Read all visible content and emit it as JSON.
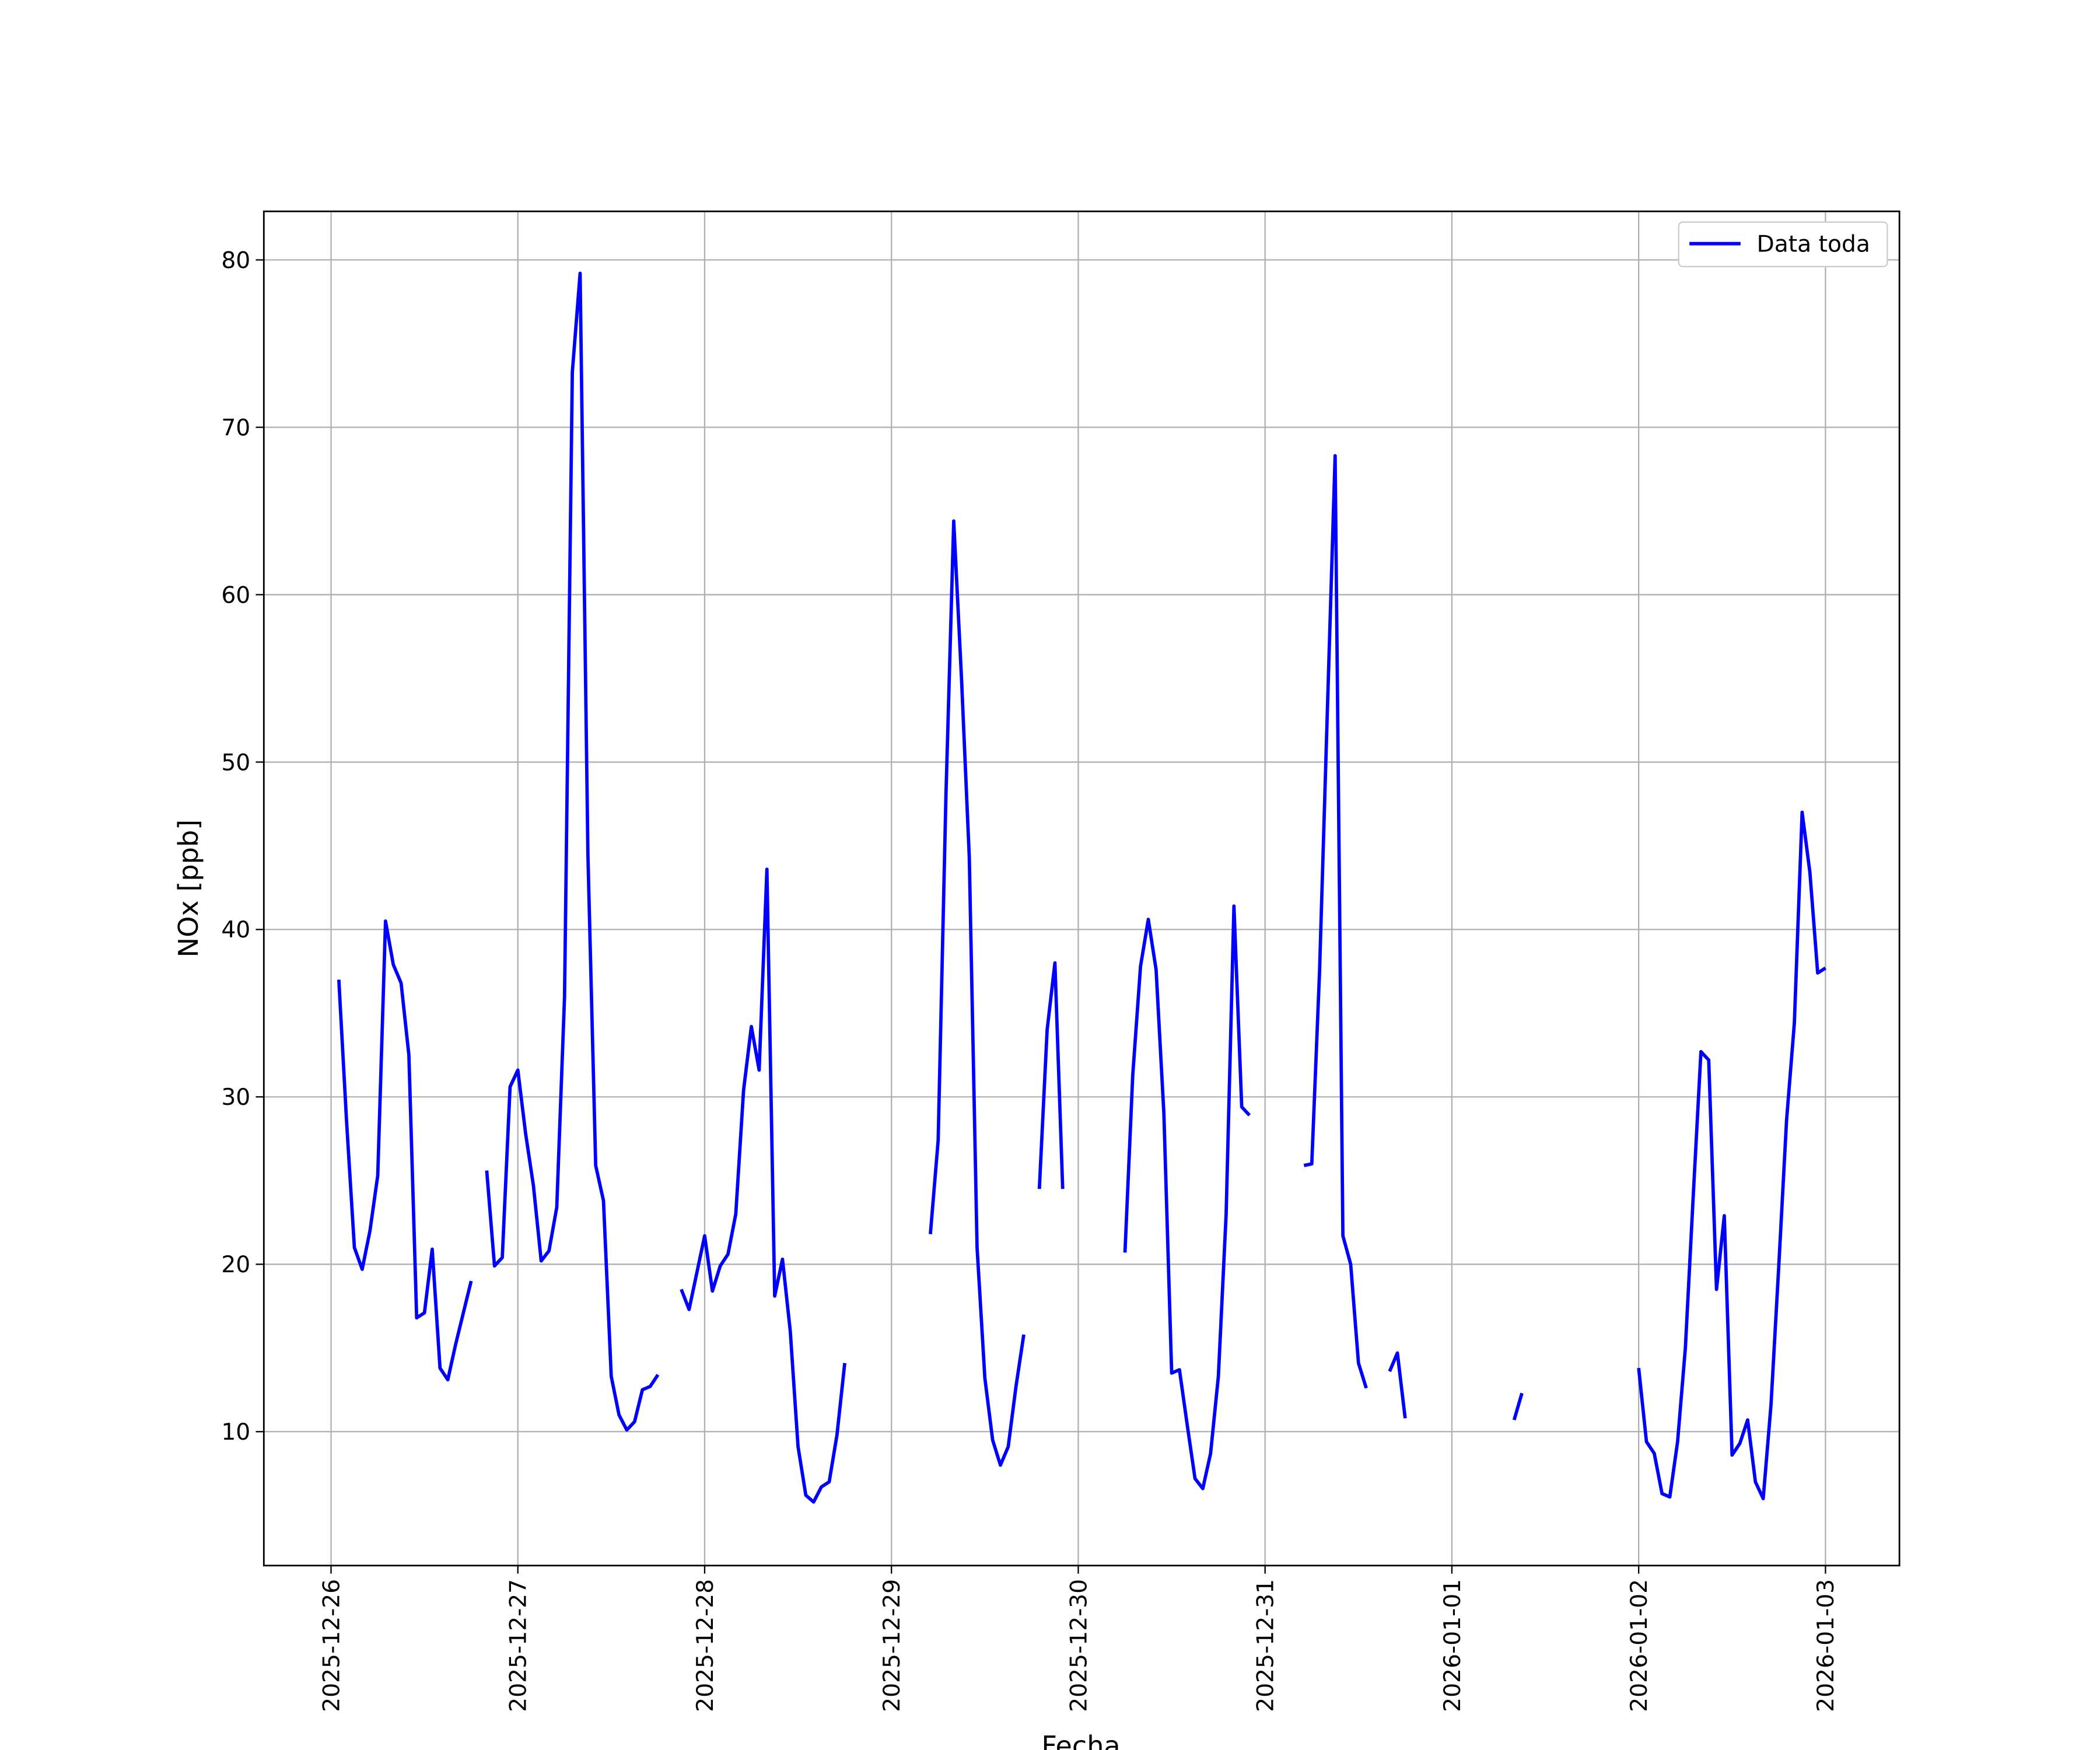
{
  "chart_data": {
    "type": "line",
    "xlabel": "Fecha",
    "ylabel": "NOx [ppb]",
    "xlim": [
      "2025-12-25T15:22",
      "2026-01-03T09:30"
    ],
    "xticks": [
      "2025-12-26",
      "2025-12-27",
      "2025-12-28",
      "2025-12-29",
      "2025-12-30",
      "2025-12-31",
      "2026-01-01",
      "2026-01-02",
      "2026-01-03"
    ],
    "ylim": [
      2.0,
      82.9
    ],
    "yticks": [
      10,
      20,
      30,
      40,
      50,
      60,
      70,
      80
    ],
    "grid": true,
    "legend": "upper right",
    "x": [
      "2025-12-26T01:00",
      "2025-12-26T02:00",
      "2025-12-26T03:00",
      "2025-12-26T04:00",
      "2025-12-26T05:00",
      "2025-12-26T06:00",
      "2025-12-26T07:00",
      "2025-12-26T08:00",
      "2025-12-26T09:00",
      "2025-12-26T10:00",
      "2025-12-26T11:00",
      "2025-12-26T12:00",
      "2025-12-26T13:00",
      "2025-12-26T14:00",
      "2025-12-26T15:00",
      "2025-12-26T16:00",
      "2025-12-26T17:00",
      "2025-12-26T18:00",
      "2025-12-26T19:00",
      "2025-12-26T20:00",
      "2025-12-26T21:00",
      "2025-12-26T22:00",
      "2025-12-26T23:00",
      "2025-12-27T00:00",
      "2025-12-27T01:00",
      "2025-12-27T02:00",
      "2025-12-27T03:00",
      "2025-12-27T04:00",
      "2025-12-27T05:00",
      "2025-12-27T06:00",
      "2025-12-27T07:00",
      "2025-12-27T08:00",
      "2025-12-27T09:00",
      "2025-12-27T10:00",
      "2025-12-27T11:00",
      "2025-12-27T12:00",
      "2025-12-27T13:00",
      "2025-12-27T14:00",
      "2025-12-27T15:00",
      "2025-12-27T16:00",
      "2025-12-27T17:00",
      "2025-12-27T18:00",
      "2025-12-27T19:00",
      "2025-12-27T21:00",
      "2025-12-27T22:00",
      "2025-12-27T23:00",
      "2025-12-28T00:00",
      "2025-12-28T01:00",
      "2025-12-28T02:00",
      "2025-12-28T03:00",
      "2025-12-28T04:00",
      "2025-12-28T05:00",
      "2025-12-28T06:00",
      "2025-12-28T07:00",
      "2025-12-28T08:00",
      "2025-12-28T09:00",
      "2025-12-28T10:00",
      "2025-12-28T11:00",
      "2025-12-28T12:00",
      "2025-12-28T13:00",
      "2025-12-28T14:00",
      "2025-12-28T15:00",
      "2025-12-28T16:00",
      "2025-12-28T17:00",
      "2025-12-28T18:00",
      "2025-12-28T19:00",
      "2025-12-29T05:00",
      "2025-12-29T06:00",
      "2025-12-29T07:00",
      "2025-12-29T08:00",
      "2025-12-29T09:00",
      "2025-12-29T10:00",
      "2025-12-29T11:00",
      "2025-12-29T12:00",
      "2025-12-29T13:00",
      "2025-12-29T14:00",
      "2025-12-29T15:00",
      "2025-12-29T16:00",
      "2025-12-29T17:00",
      "2025-12-29T18:00",
      "2025-12-29T19:00",
      "2025-12-29T20:00",
      "2025-12-29T21:00",
      "2025-12-29T22:00",
      "2025-12-29T23:00",
      "2025-12-30T06:00",
      "2025-12-30T07:00",
      "2025-12-30T08:00",
      "2025-12-30T09:00",
      "2025-12-30T10:00",
      "2025-12-30T11:00",
      "2025-12-30T12:00",
      "2025-12-30T13:00",
      "2025-12-30T14:00",
      "2025-12-30T15:00",
      "2025-12-30T16:00",
      "2025-12-30T17:00",
      "2025-12-30T18:00",
      "2025-12-30T19:00",
      "2025-12-30T20:00",
      "2025-12-30T21:00",
      "2025-12-30T22:00",
      "2025-12-30T23:00",
      "2025-12-31T05:00",
      "2025-12-31T06:00",
      "2025-12-31T07:00",
      "2025-12-31T08:00",
      "2025-12-31T09:00",
      "2025-12-31T10:00",
      "2025-12-31T11:00",
      "2025-12-31T12:00",
      "2025-12-31T13:00",
      "2025-12-31T14:00",
      "2025-12-31T16:00",
      "2025-12-31T17:00",
      "2025-12-31T18:00",
      "2025-12-31T19:00",
      "2026-01-01T08:00",
      "2026-01-01T09:00",
      "2026-01-01T10:00",
      "2026-01-02T00:00",
      "2026-01-02T01:00",
      "2026-01-02T02:00",
      "2026-01-02T03:00",
      "2026-01-02T04:00",
      "2026-01-02T05:00",
      "2026-01-02T06:00",
      "2026-01-02T07:00",
      "2026-01-02T08:00",
      "2026-01-02T09:00",
      "2026-01-02T10:00",
      "2026-01-02T11:00",
      "2026-01-02T12:00",
      "2026-01-02T13:00",
      "2026-01-02T14:00",
      "2026-01-02T15:00",
      "2026-01-02T16:00",
      "2026-01-02T17:00",
      "2026-01-02T18:00",
      "2026-01-02T19:00",
      "2026-01-02T20:00",
      "2026-01-02T21:00",
      "2026-01-02T22:00",
      "2026-01-02T23:00",
      "2026-01-03T00:00"
    ],
    "series": [
      {
        "name": "Data toda",
        "color": "#0000ff",
        "values": [
          37,
          28.5,
          21,
          19.7,
          22,
          25.3,
          40.5,
          37.9,
          36.8,
          32.5,
          16.8,
          17.1,
          20.9,
          13.8,
          13.1,
          15.2,
          17.1,
          19,
          null,
          25.6,
          19.9,
          20.4,
          30.6,
          31.6,
          27.8,
          24.7,
          20.2,
          20.8,
          23.4,
          36,
          73.3,
          79.2,
          44.5,
          25.9,
          23.8,
          13.3,
          11,
          10.1,
          10.6,
          12.5,
          12.7,
          13.4,
          null,
          18.5,
          17.3,
          19.5,
          21.7,
          18.4,
          19.9,
          20.6,
          23,
          30.4,
          34.2,
          31.6,
          43.6,
          18.1,
          20.3,
          16,
          9.1,
          6.2,
          5.8,
          6.7,
          7,
          9.8,
          14.1,
          null,
          21.8,
          27.4,
          48,
          64.4,
          55,
          44.3,
          21,
          13.2,
          9.5,
          8,
          9.1,
          12.7,
          15.8,
          null,
          24.5,
          34,
          38,
          24.5,
          null,
          20.7,
          31.3,
          37.8,
          40.6,
          37.6,
          29,
          13.5,
          13.7,
          10.4,
          7.2,
          6.6,
          8.7,
          13.3,
          23,
          41.4,
          29.4,
          28.9,
          null,
          25.9,
          26,
          37.5,
          53,
          68.3,
          21.7,
          20,
          14.1,
          12.6,
          null,
          13.6,
          14.7,
          10.8,
          null,
          10.7,
          12.3,
          null,
          13.8,
          9.4,
          8.7,
          6.3,
          6.1,
          9.4,
          15,
          24,
          32.7,
          32.2,
          18.5,
          22.9,
          8.6,
          9.3,
          10.7,
          7,
          6,
          11.6,
          19.9,
          28.6,
          34.4,
          47,
          43.4,
          37.4,
          37.7
        ]
      }
    ]
  }
}
